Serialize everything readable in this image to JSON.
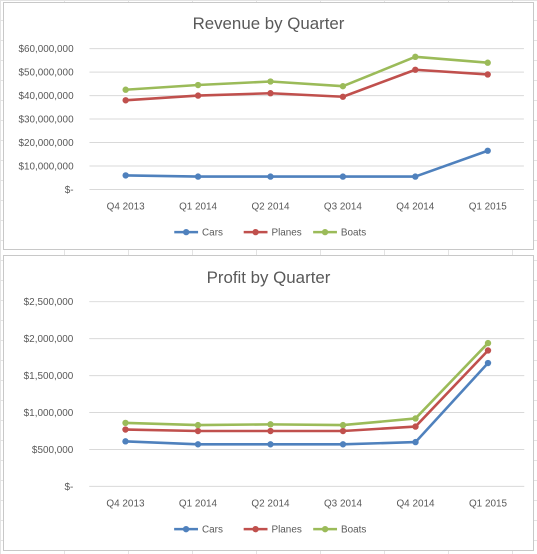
{
  "chart_data": [
    {
      "type": "line",
      "title": "Revenue by Quarter",
      "categories": [
        "Q4 2013",
        "Q1 2014",
        "Q2 2014",
        "Q3 2014",
        "Q4 2014",
        "Q1 2015"
      ],
      "series": [
        {
          "name": "Cars",
          "color": "#4f81bd",
          "values": [
            6000000,
            5500000,
            5500000,
            5500000,
            5500000,
            16500000
          ]
        },
        {
          "name": "Planes",
          "color": "#c0504d",
          "values": [
            38000000,
            40000000,
            41000000,
            39500000,
            51000000,
            49000000
          ]
        },
        {
          "name": "Boats",
          "color": "#9bbb59",
          "values": [
            42500000,
            44500000,
            46000000,
            44000000,
            56500000,
            54000000
          ]
        }
      ],
      "ylim": [
        0,
        60000000
      ],
      "y_ticks": [
        {
          "value": 0,
          "label": "$-"
        },
        {
          "value": 10000000,
          "label": "$10,000,000"
        },
        {
          "value": 20000000,
          "label": "$20,000,000"
        },
        {
          "value": 30000000,
          "label": "$30,000,000"
        },
        {
          "value": 40000000,
          "label": "$40,000,000"
        },
        {
          "value": 50000000,
          "label": "$50,000,000"
        },
        {
          "value": 60000000,
          "label": "$60,000,000"
        }
      ],
      "xlabel": "",
      "ylabel": "",
      "grid": true,
      "legend_position": "bottom"
    },
    {
      "type": "line",
      "title": "Profit by Quarter",
      "categories": [
        "Q4 2013",
        "Q1 2014",
        "Q2 2014",
        "Q3 2014",
        "Q4 2014",
        "Q1 2015"
      ],
      "series": [
        {
          "name": "Cars",
          "color": "#4f81bd",
          "values": [
            610000,
            570000,
            570000,
            570000,
            600000,
            1670000
          ]
        },
        {
          "name": "Planes",
          "color": "#c0504d",
          "values": [
            770000,
            750000,
            750000,
            750000,
            810000,
            1840000
          ]
        },
        {
          "name": "Boats",
          "color": "#9bbb59",
          "values": [
            860000,
            830000,
            840000,
            830000,
            920000,
            1940000
          ]
        }
      ],
      "ylim": [
        0,
        2500000
      ],
      "y_ticks": [
        {
          "value": 0,
          "label": "$-"
        },
        {
          "value": 500000,
          "label": "$500,000"
        },
        {
          "value": 1000000,
          "label": "$1,000,000"
        },
        {
          "value": 1500000,
          "label": "$1,500,000"
        },
        {
          "value": 2000000,
          "label": "$2,000,000"
        },
        {
          "value": 2500000,
          "label": "$2,500,000"
        }
      ],
      "xlabel": "",
      "ylabel": "",
      "grid": true,
      "legend_position": "bottom"
    }
  ]
}
